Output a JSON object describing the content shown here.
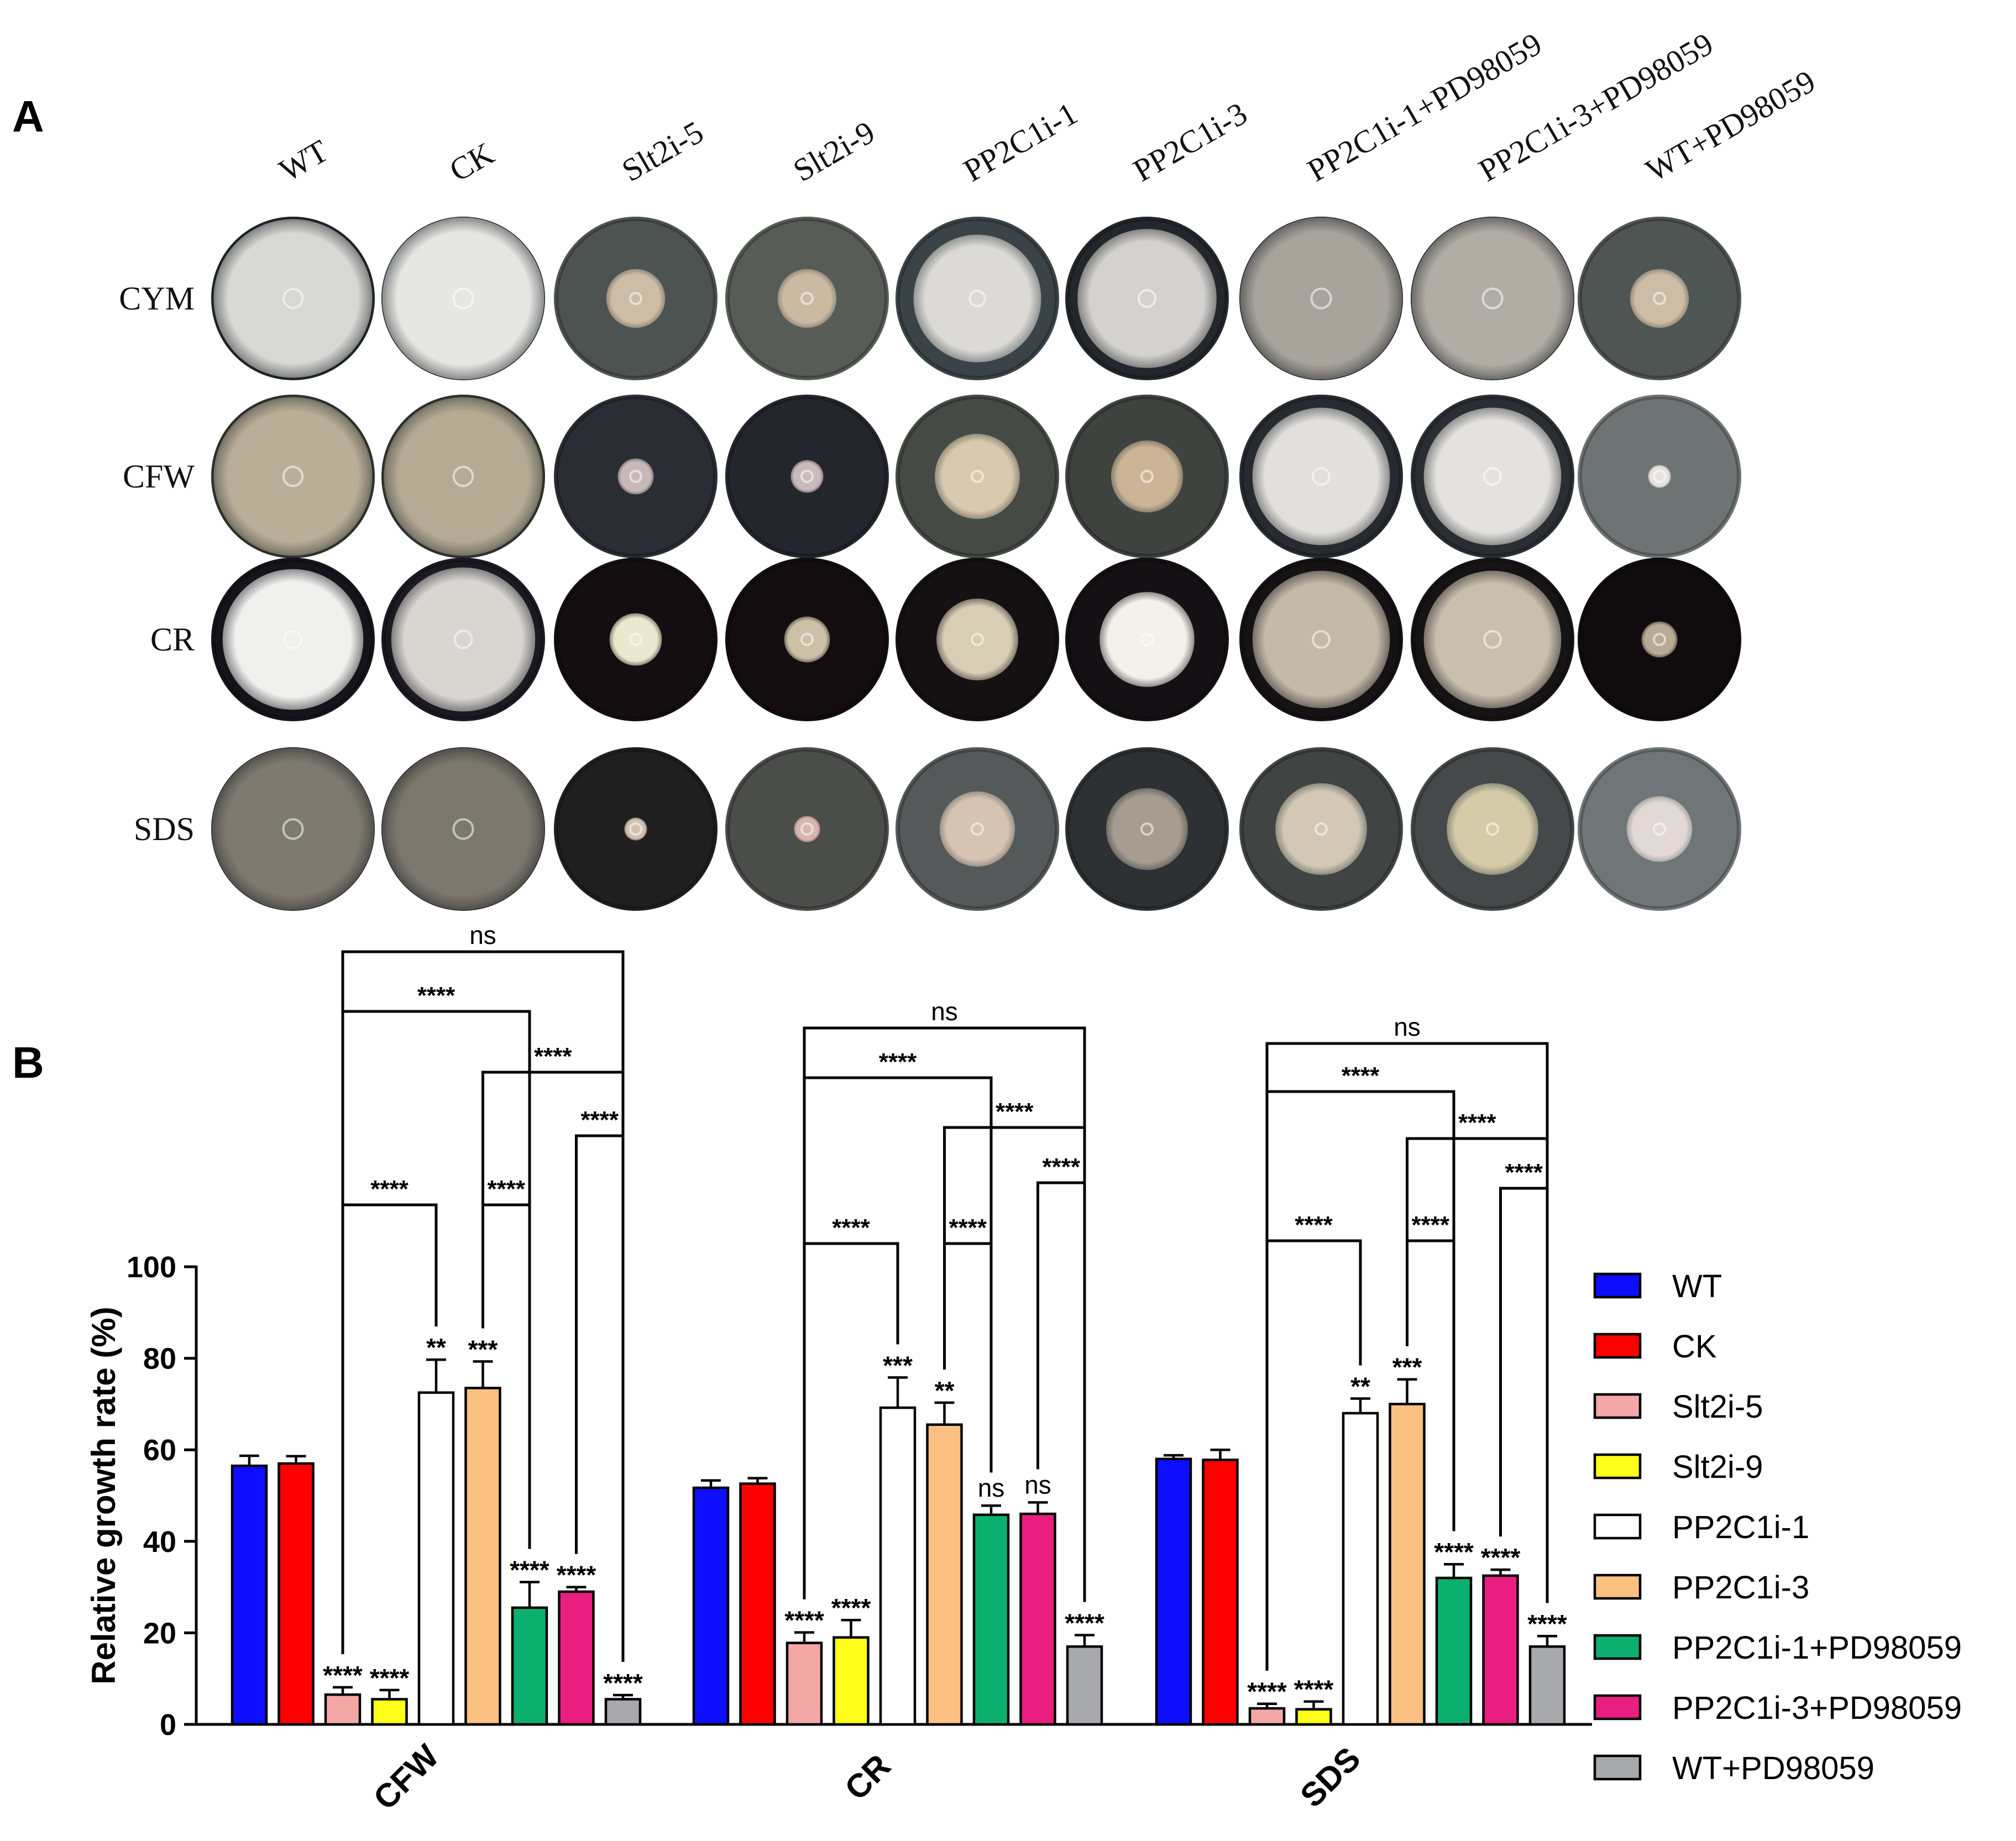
{
  "panel_a": {
    "label": "A",
    "columns": [
      "WT",
      "CK",
      "Slt2i-5",
      "Slt2i-9",
      "PP2C1i-1",
      "PP2C1i-3",
      "PP2C1i-1+PD98059",
      "PP2C1i-3+PD98059",
      "WT+PD98059"
    ],
    "rows": [
      {
        "name": "CYM",
        "plate_colors": [
          "#1c2228",
          "#1e242a",
          "#4d5350",
          "#575c56",
          "#3a4448",
          "#23272b",
          "#1e2226",
          "#1f2328",
          "#4f5552"
        ],
        "colony_colors": [
          "#d8d8d4",
          "#e6e6e2",
          "#cdbca6",
          "#cbb9a2",
          "#dcdad6",
          "#d4d2cf",
          "#a8a39b",
          "#b2ada4",
          "#cdbda6"
        ],
        "colony_size": [
          0.97,
          0.99,
          0.36,
          0.36,
          0.78,
          0.85,
          0.99,
          0.99,
          0.36
        ]
      },
      {
        "name": "CFW",
        "plate_colors": [
          "#2c302d",
          "#2d312e",
          "#2a2d33",
          "#23262c",
          "#454a45",
          "#3f433f",
          "#272b30",
          "#2a2e33",
          "#6e7473"
        ],
        "colony_colors": [
          "#b9ae98",
          "#b5ab95",
          "#c8b8b8",
          "#c9bbbd",
          "#d9c9ae",
          "#cbb596",
          "#e2e0dc",
          "#e4e2de",
          "#e8e2e0"
        ],
        "colony_size": [
          0.97,
          0.97,
          0.22,
          0.2,
          0.52,
          0.44,
          0.84,
          0.84,
          0.14
        ]
      },
      {
        "name": "CR",
        "plate_colors": [
          "#15141a",
          "#1b1a20",
          "#140e10",
          "#130d0f",
          "#151012",
          "#141013",
          "#151214",
          "#161314",
          "#100c0d"
        ],
        "colony_colors": [
          "#f0f0ee",
          "#d9d6d1",
          "#ece7cf",
          "#ccc1a8",
          "#d8cdb5",
          "#f2f1ea",
          "#c3baa9",
          "#c8bfae",
          "#b7ab96"
        ],
        "colony_size": [
          0.86,
          0.88,
          0.32,
          0.28,
          0.5,
          0.58,
          0.84,
          0.84,
          0.22
        ]
      },
      {
        "name": "SDS",
        "plate_colors": [
          "#26282a",
          "#232528",
          "#1f1f20",
          "#4a4d49",
          "#55595a",
          "#2e3133",
          "#404544",
          "#45494a",
          "#6f7677"
        ],
        "colony_colors": [
          "#7f7a70",
          "#7d786e",
          "#d2c1ae",
          "#d8b6ad",
          "#d6c3b2",
          "#a69d90",
          "#d2c8b5",
          "#d6cba8",
          "#e2d8d5"
        ],
        "colony_size": [
          0.99,
          0.99,
          0.14,
          0.16,
          0.46,
          0.5,
          0.56,
          0.56,
          0.4
        ]
      }
    ]
  },
  "chart_data": {
    "type": "bar",
    "panel_label": "B",
    "ylabel": "Relative growth rate (%)",
    "xlabel": "",
    "ylim": [
      0,
      100
    ],
    "yticks": [
      0,
      20,
      40,
      60,
      80,
      100
    ],
    "categories": [
      "CFW",
      "CR",
      "SDS"
    ],
    "series": [
      {
        "name": "WT",
        "color": "#0d0dff",
        "values": [
          56.5,
          51.7,
          58.0
        ],
        "errors": [
          2.2,
          1.6,
          0.8
        ],
        "labels": [
          "",
          "",
          ""
        ]
      },
      {
        "name": "CK",
        "color": "#ff0000",
        "values": [
          57.0,
          52.6,
          57.8
        ],
        "errors": [
          1.6,
          1.2,
          2.2
        ],
        "labels": [
          "",
          "",
          ""
        ]
      },
      {
        "name": "Slt2i-5",
        "color": "#f4a7a7",
        "values": [
          6.5,
          17.8,
          3.5
        ],
        "errors": [
          1.6,
          2.3,
          1.0
        ],
        "labels": [
          "****",
          "****",
          "****"
        ]
      },
      {
        "name": "Slt2i-9",
        "color": "#ffff1a",
        "values": [
          5.5,
          19.0,
          3.3
        ],
        "errors": [
          2.0,
          3.8,
          1.7
        ],
        "labels": [
          "****",
          "****",
          "****"
        ]
      },
      {
        "name": "PP2C1i-1",
        "color": "#ffffff",
        "values": [
          72.5,
          69.2,
          68.0
        ],
        "errors": [
          7.2,
          6.6,
          3.2
        ],
        "labels": [
          "**",
          "***",
          "**"
        ]
      },
      {
        "name": "PP2C1i-3",
        "color": "#fcc083",
        "values": [
          73.5,
          65.5,
          70.0
        ],
        "errors": [
          5.8,
          4.8,
          5.4
        ],
        "labels": [
          "***",
          "**",
          "***"
        ]
      },
      {
        "name": "PP2C1i-1+PD98059",
        "color": "#0bb06f",
        "values": [
          25.5,
          45.8,
          32.0
        ],
        "errors": [
          5.6,
          2.0,
          3.0
        ],
        "labels": [
          "****",
          "ns",
          "****"
        ]
      },
      {
        "name": "PP2C1i-3+PD98059",
        "color": "#ea1e80",
        "values": [
          29.0,
          46.0,
          32.5
        ],
        "errors": [
          1.0,
          2.5,
          1.3
        ],
        "labels": [
          "****",
          "ns",
          "****"
        ]
      },
      {
        "name": "WT+PD98059",
        "color": "#a7a9ac",
        "values": [
          5.5,
          17.0,
          17.0
        ],
        "errors": [
          0.9,
          2.5,
          2.3
        ],
        "labels": [
          "****",
          "****",
          "****"
        ]
      }
    ],
    "comparisons": [
      {
        "from": 2,
        "to": 8,
        "label": "ns",
        "level": 5
      },
      {
        "from": 2,
        "to": 6,
        "label": "****",
        "level": 4
      },
      {
        "from": 5,
        "to": 8,
        "label": "****",
        "level": 3
      },
      {
        "from": 7,
        "to": 8,
        "label": "****",
        "level": 2
      },
      {
        "from": 2,
        "to": 4,
        "label": "****",
        "level": 1
      },
      {
        "from": 5,
        "to": 6,
        "label": "****",
        "level": 1
      }
    ]
  }
}
